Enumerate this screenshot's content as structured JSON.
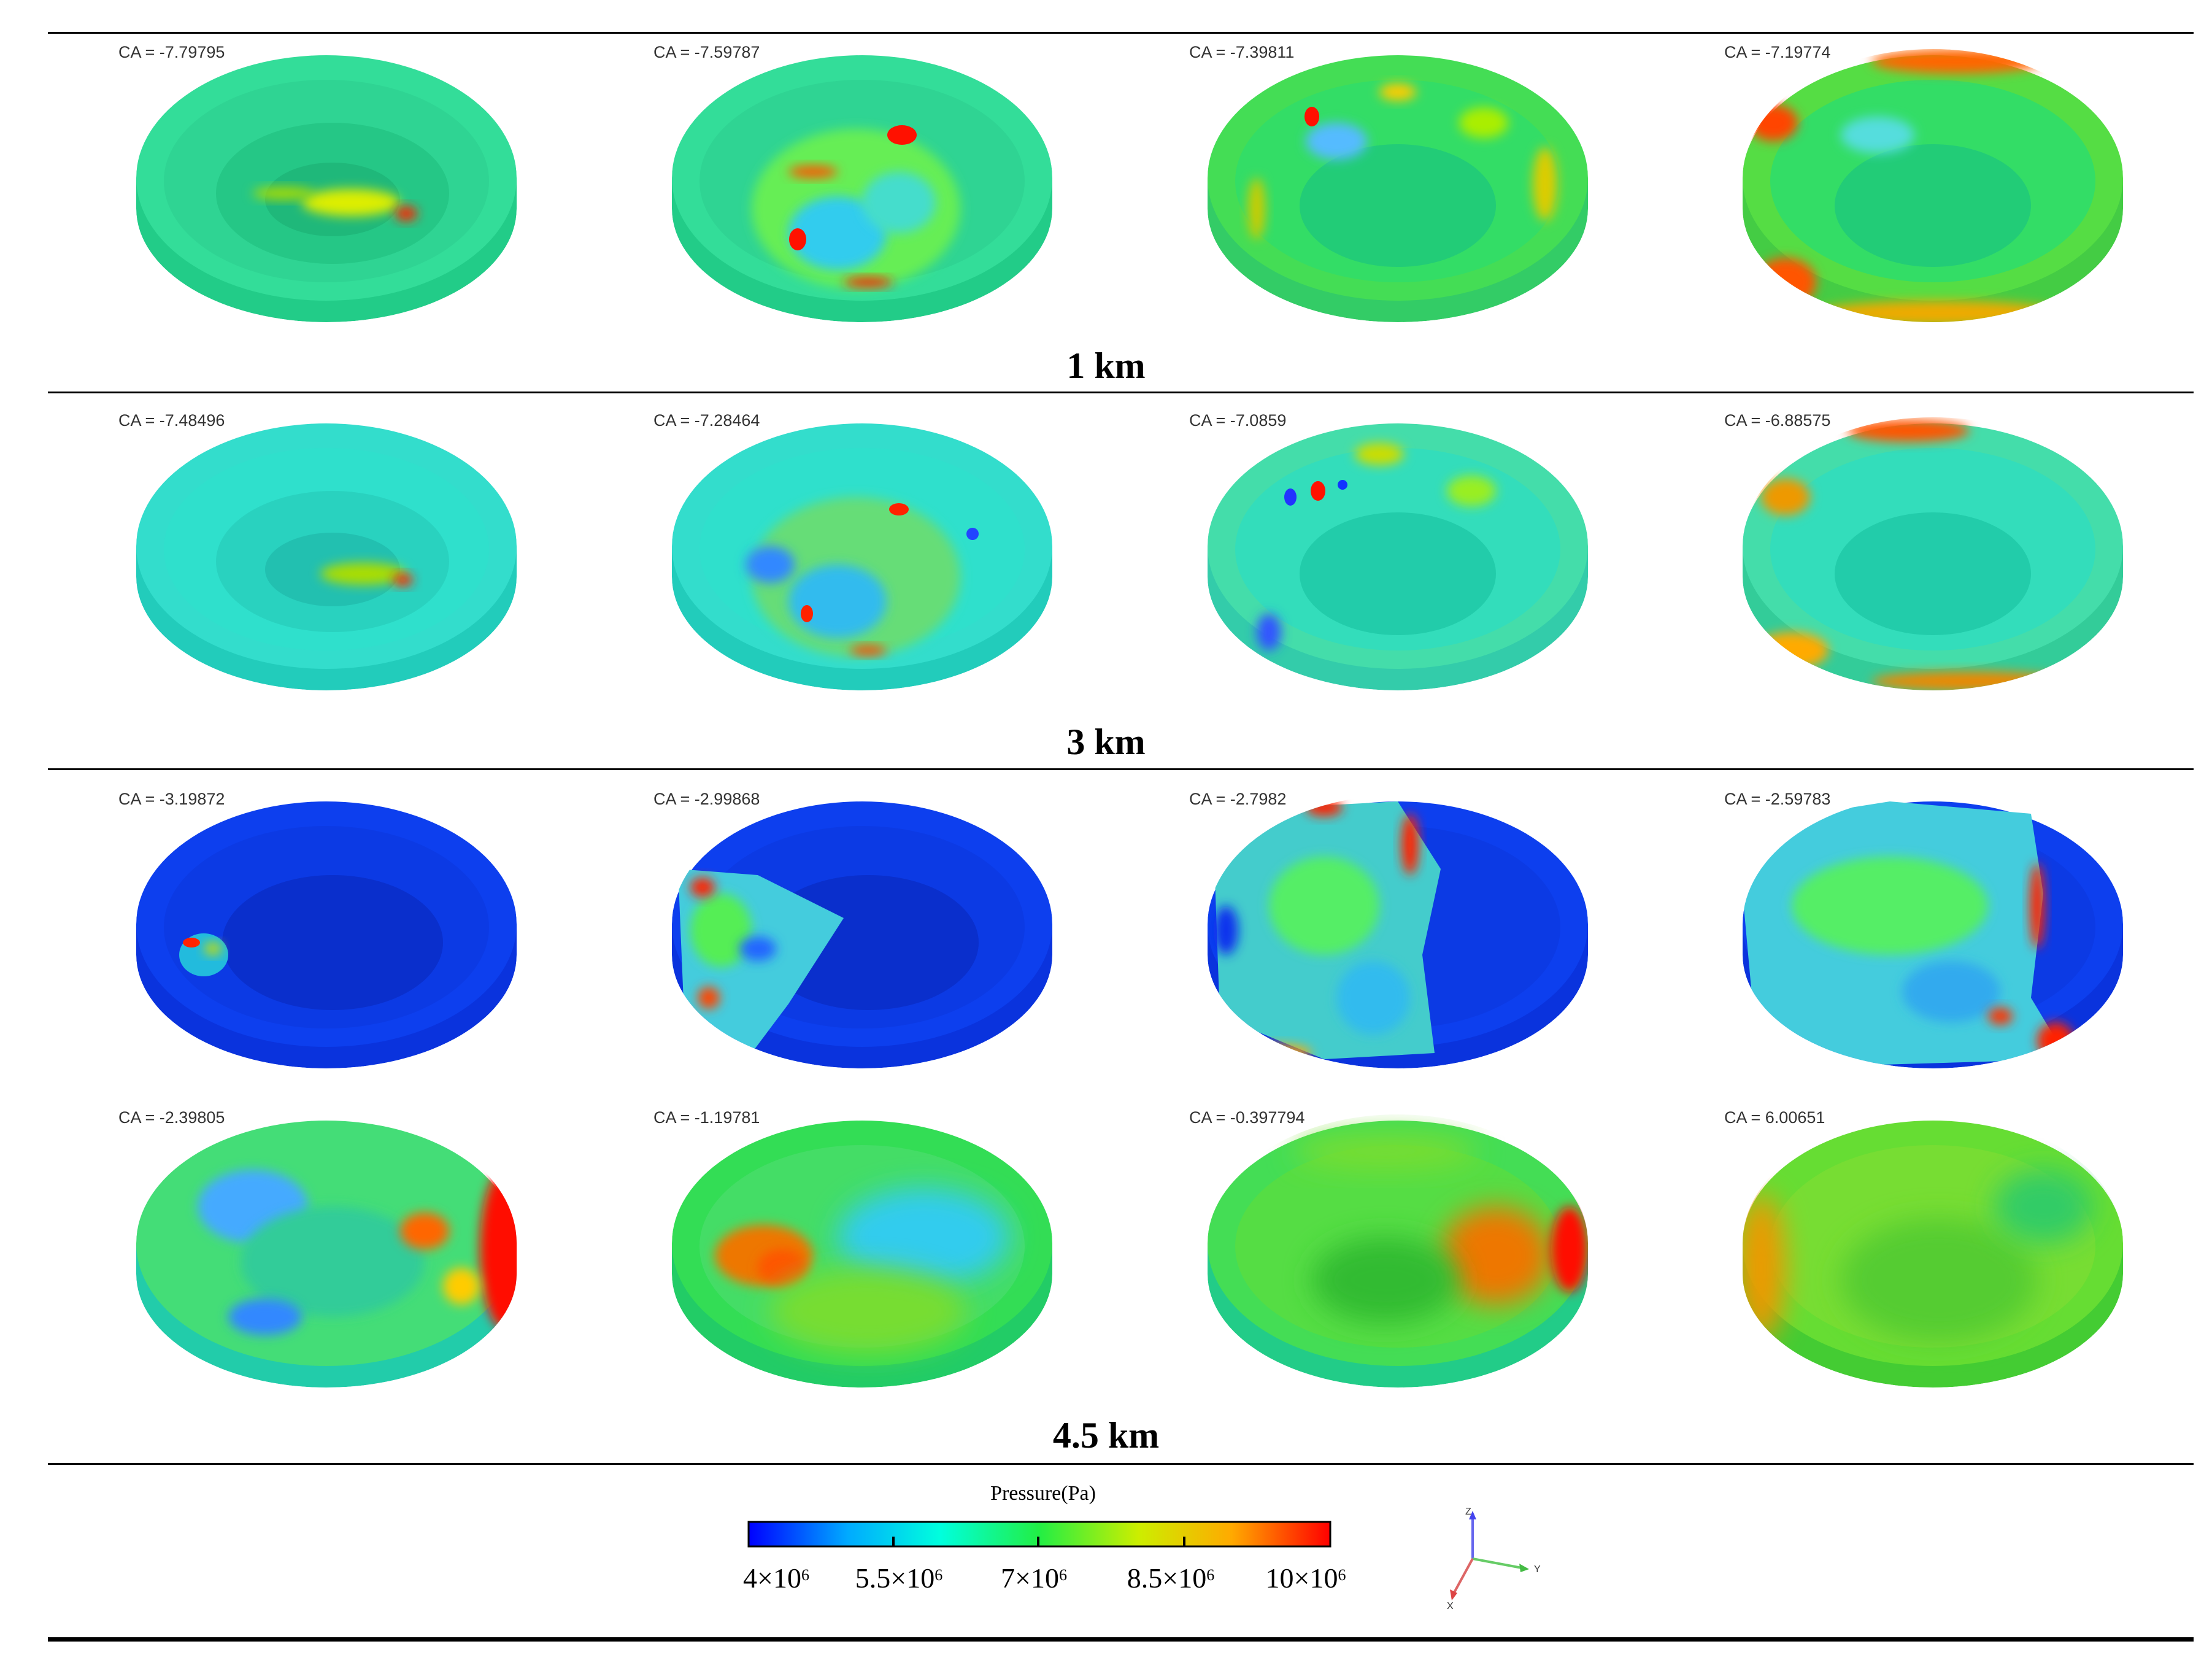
{
  "rows": [
    {
      "ca": [
        "CA = -7.79795",
        "CA = -7.59787",
        "CA = -7.39811",
        "CA = -7.19774"
      ]
    },
    {
      "ca": [
        "CA = -7.48496",
        "CA = -7.28464",
        "CA = -7.0859",
        "CA = -6.88575"
      ]
    },
    {
      "ca": [
        "CA = -3.19872",
        "CA = -2.99868",
        "CA = -2.7982",
        "CA = -2.59783"
      ]
    },
    {
      "ca": [
        "CA = -2.39805",
        "CA = -1.19781",
        "CA = -0.397794",
        "CA = 6.00651"
      ]
    }
  ],
  "sections": {
    "s1": "1 km",
    "s2": "3 km",
    "s3": "4.5 km"
  },
  "legend": {
    "title": "Pressure(Pa)",
    "ticks": [
      {
        "base": "4×10",
        "exp": "6"
      },
      {
        "base": "5.5×10",
        "exp": "6"
      },
      {
        "base": "7×10",
        "exp": "6"
      },
      {
        "base": "8.5×10",
        "exp": "6"
      },
      {
        "base": "10×10",
        "exp": "6"
      }
    ],
    "colors": [
      "#0000ff",
      "#00aaff",
      "#00ffdd",
      "#22ee44",
      "#ccee00",
      "#ffaa00",
      "#ff0000"
    ]
  },
  "axes": {
    "z": "Z",
    "y": "Y",
    "x": "X"
  }
}
